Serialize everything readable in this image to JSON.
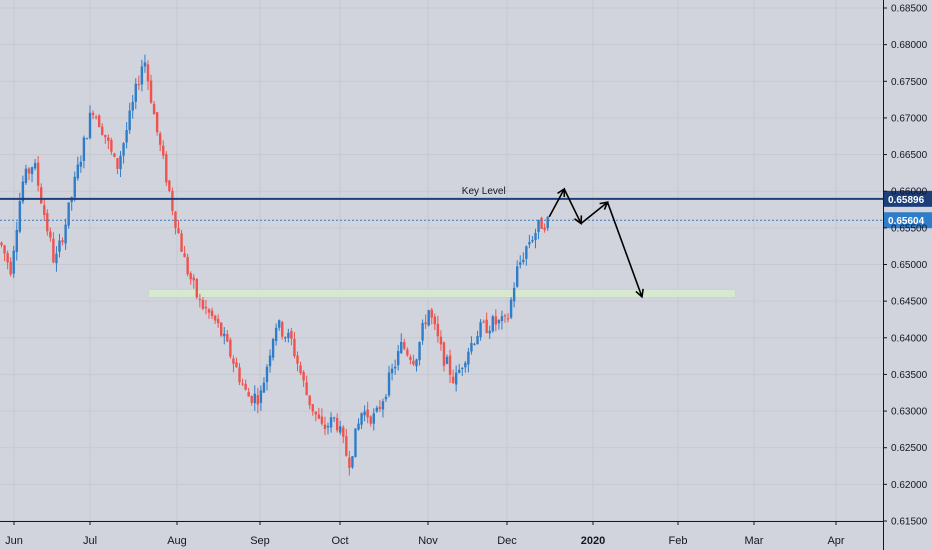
{
  "chart_data": {
    "type": "candlestick",
    "x_labels": [
      "Jun",
      "Jul",
      "Aug",
      "Sep",
      "Oct",
      "Nov",
      "Dec",
      "2020",
      "Feb",
      "Mar",
      "Apr"
    ],
    "y_ticks": [
      "0.68500",
      "0.68000",
      "0.67500",
      "0.67000",
      "0.66500",
      "0.66000",
      "0.65500",
      "0.65000",
      "0.64500",
      "0.64000",
      "0.63500",
      "0.63000",
      "0.62500",
      "0.62000",
      "0.61500"
    ],
    "ylim": [
      0.615,
      0.685
    ],
    "key_level": {
      "label": "Key Level",
      "value": 0.65896,
      "value_label": "0.65896",
      "color": "#1c3f7a"
    },
    "last_price": {
      "value": 0.65604,
      "value_label": "0.65604",
      "color": "#2f7dc8"
    },
    "support_zone": {
      "low": 0.6455,
      "high": 0.6466,
      "color": "#d6e8d0"
    },
    "colors": {
      "up": "#2f7dc8",
      "down": "#ef5350",
      "background": "#d1d4dc",
      "axis_text": "#131722",
      "arrows": "#000000"
    },
    "waypoints": [
      {
        "t": 0,
        "p": 0.653
      },
      {
        "t": 0.012,
        "p": 0.6495
      },
      {
        "t": 0.025,
        "p": 0.661
      },
      {
        "t": 0.038,
        "p": 0.664
      },
      {
        "t": 0.05,
        "p": 0.657
      },
      {
        "t": 0.062,
        "p": 0.65
      },
      {
        "t": 0.075,
        "p": 0.656
      },
      {
        "t": 0.09,
        "p": 0.664
      },
      {
        "t": 0.105,
        "p": 0.6715
      },
      {
        "t": 0.118,
        "p": 0.668
      },
      {
        "t": 0.132,
        "p": 0.663
      },
      {
        "t": 0.148,
        "p": 0.6705
      },
      {
        "t": 0.163,
        "p": 0.6785
      },
      {
        "t": 0.178,
        "p": 0.668
      },
      {
        "t": 0.195,
        "p": 0.658
      },
      {
        "t": 0.21,
        "p": 0.65
      },
      {
        "t": 0.225,
        "p": 0.645
      },
      {
        "t": 0.245,
        "p": 0.642
      },
      {
        "t": 0.262,
        "p": 0.6375
      },
      {
        "t": 0.28,
        "p": 0.632
      },
      {
        "t": 0.295,
        "p": 0.632
      },
      {
        "t": 0.312,
        "p": 0.642
      },
      {
        "t": 0.33,
        "p": 0.6395
      },
      {
        "t": 0.348,
        "p": 0.632
      },
      {
        "t": 0.365,
        "p": 0.6275
      },
      {
        "t": 0.38,
        "p": 0.629
      },
      {
        "t": 0.395,
        "p": 0.623
      },
      {
        "t": 0.41,
        "p": 0.63
      },
      {
        "t": 0.425,
        "p": 0.629
      },
      {
        "t": 0.44,
        "p": 0.634
      },
      {
        "t": 0.455,
        "p": 0.639
      },
      {
        "t": 0.47,
        "p": 0.637
      },
      {
        "t": 0.485,
        "p": 0.644
      },
      {
        "t": 0.5,
        "p": 0.638
      },
      {
        "t": 0.515,
        "p": 0.634
      },
      {
        "t": 0.528,
        "p": 0.638
      },
      {
        "t": 0.542,
        "p": 0.641
      },
      {
        "t": 0.558,
        "p": 0.642
      },
      {
        "t": 0.574,
        "p": 0.642
      },
      {
        "t": 0.585,
        "p": 0.649
      },
      {
        "t": 0.598,
        "p": 0.653
      },
      {
        "t": 0.612,
        "p": 0.6555
      },
      {
        "t": 0.622,
        "p": 0.656
      }
    ],
    "arrows_path": [
      {
        "t": 0.622,
        "p": 0.6565
      },
      {
        "t": 0.639,
        "p": 0.6603
      },
      {
        "t": 0.658,
        "p": 0.6556
      },
      {
        "t": 0.688,
        "p": 0.6585
      },
      {
        "t": 0.727,
        "p": 0.6456
      }
    ]
  }
}
